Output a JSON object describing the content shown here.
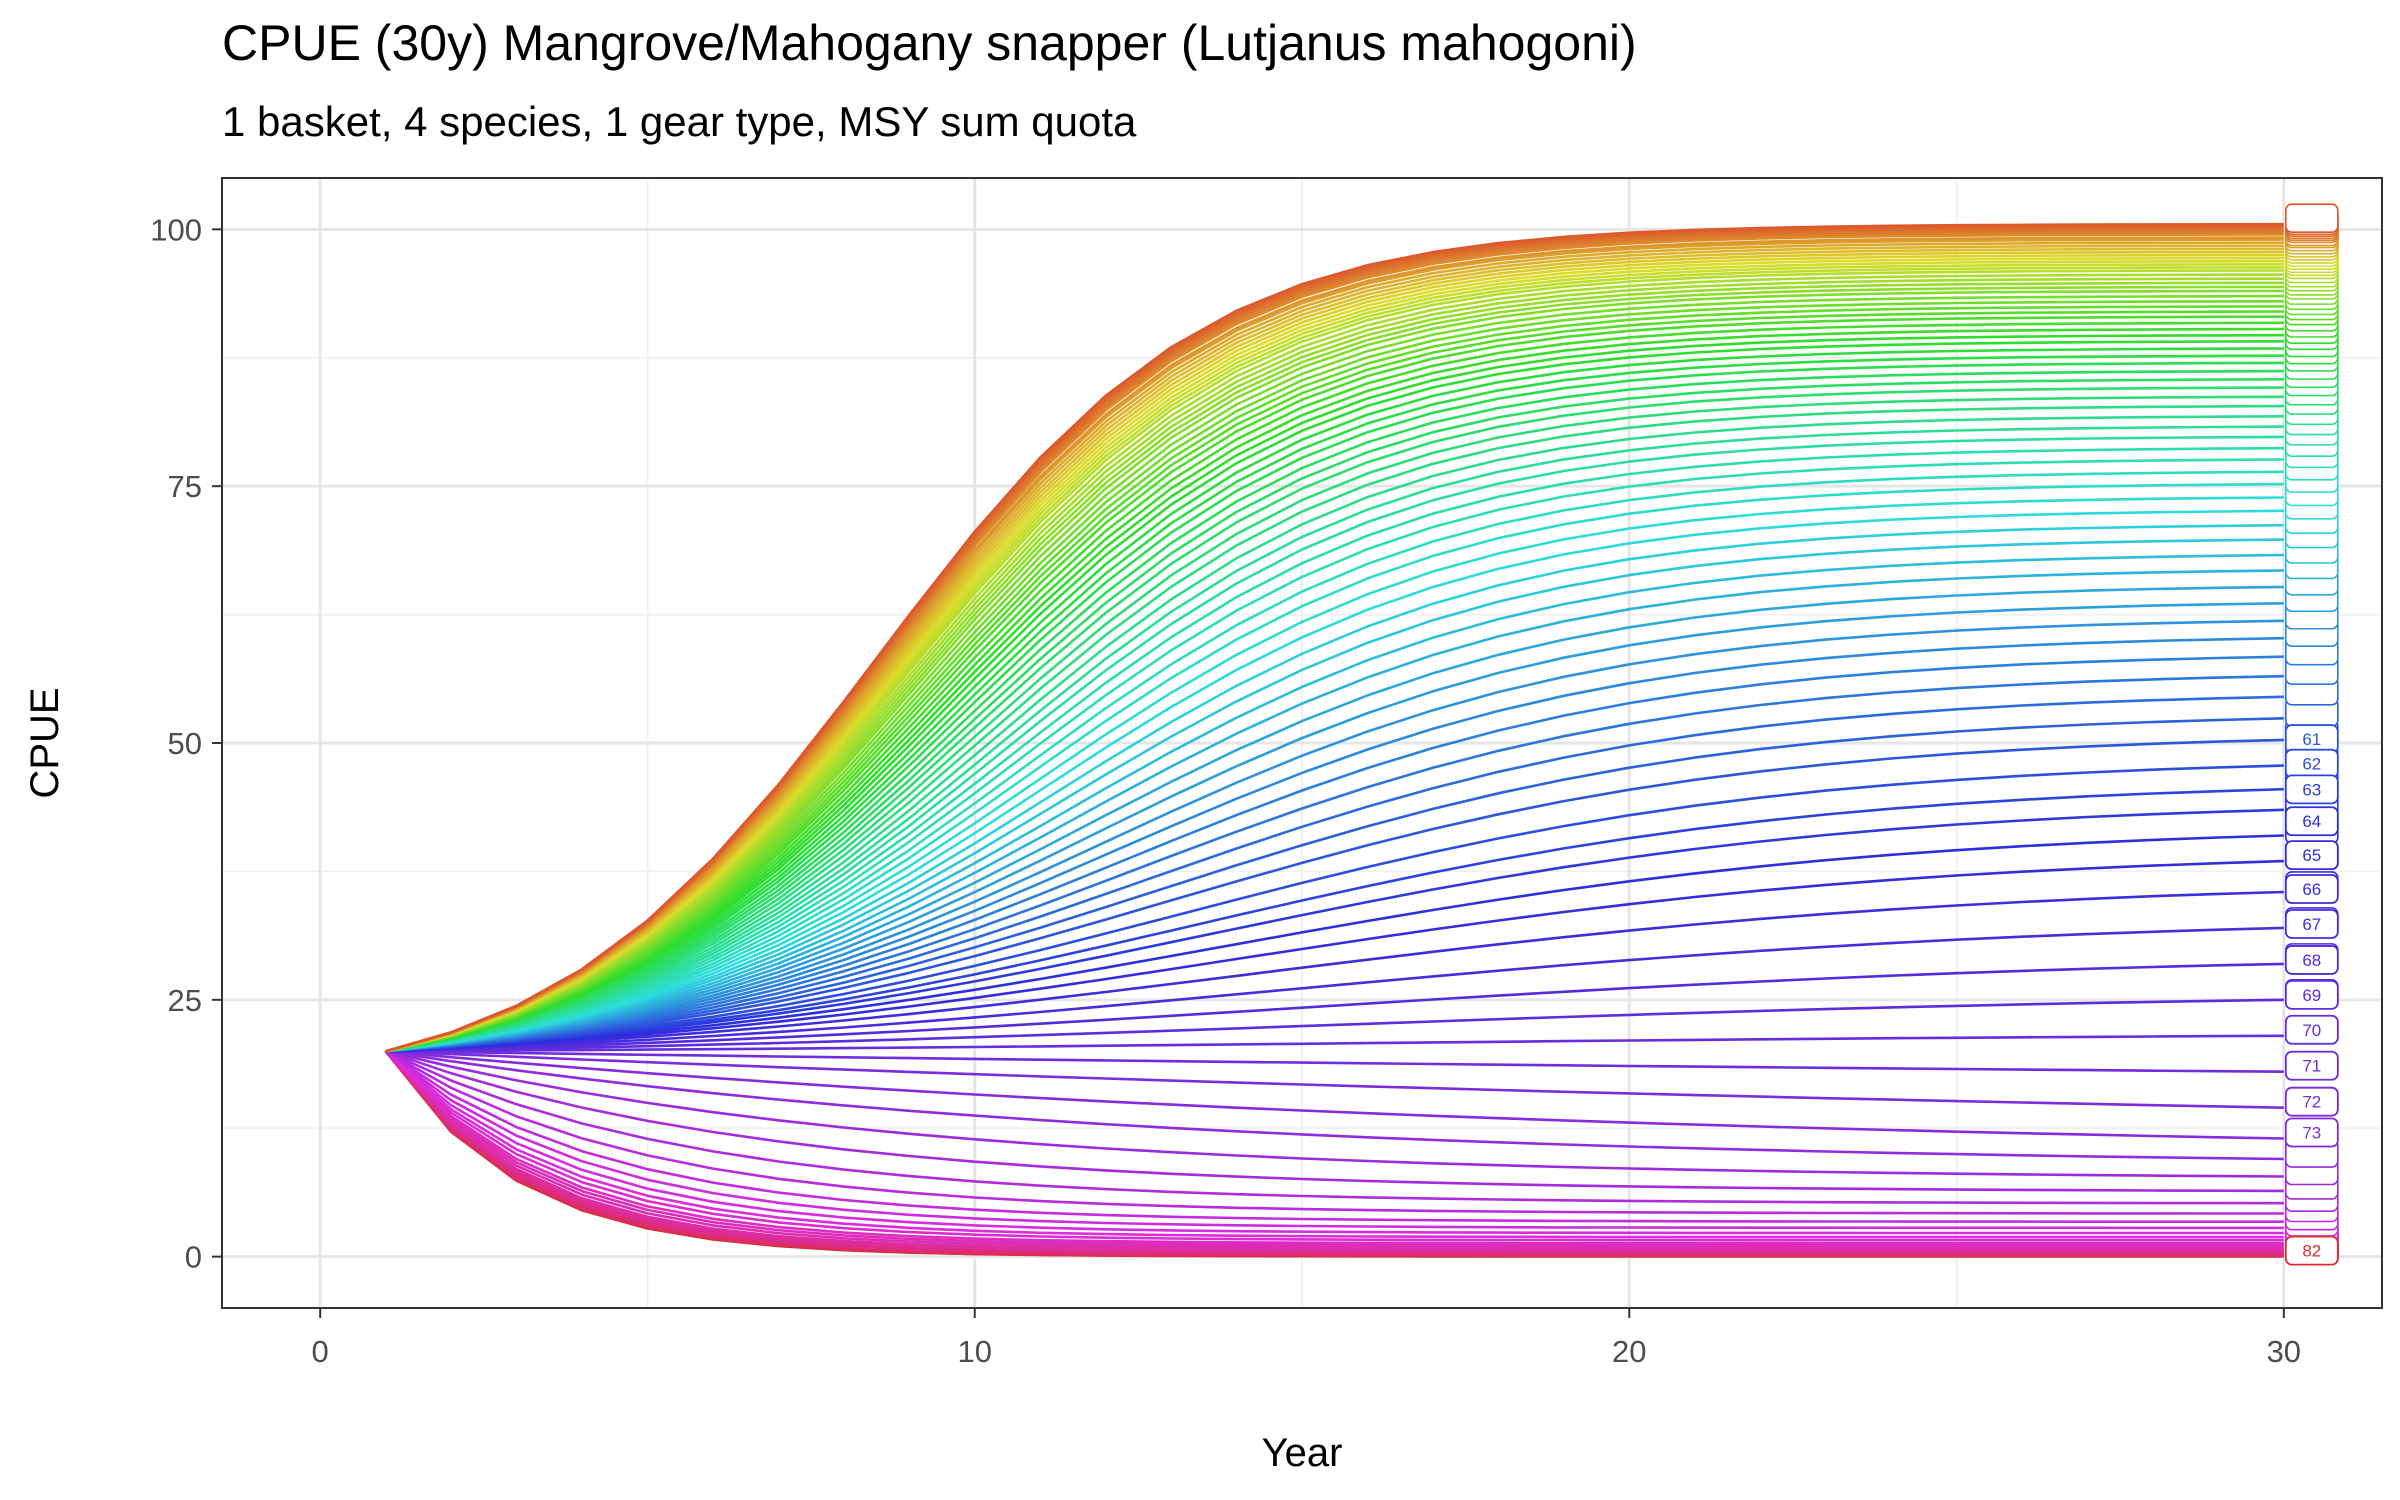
{
  "chart_data": {
    "type": "line",
    "title": "CPUE (30y) Mangrove/Mahogany snapper (Lutjanus mahogoni)",
    "subtitle": "1 basket, 4 species, 1 gear type, MSY sum quota",
    "xlabel": "Year",
    "ylabel": "CPUE",
    "xlim": [
      -1.5,
      31.5
    ],
    "ylim": [
      -5,
      105
    ],
    "x_ticks": [
      0,
      10,
      20,
      30
    ],
    "y_ticks": [
      0,
      25,
      50,
      75,
      100
    ],
    "x_tick_labels": [
      "0",
      "10",
      "20",
      "30"
    ],
    "y_tick_labels": [
      "0",
      "25",
      "50",
      "75",
      "100"
    ],
    "grid": true,
    "legend": "none",
    "x": [
      1,
      2,
      3,
      4,
      5,
      6,
      7,
      8,
      9,
      10,
      11,
      12,
      13,
      14,
      15,
      16,
      17,
      18,
      19,
      20,
      21,
      22,
      23,
      24,
      25,
      26,
      27,
      28,
      29,
      30
    ],
    "series_count": 100,
    "start_value": 20,
    "series_end_values_year30": [
      100.5,
      100.3,
      100.1,
      99.9,
      99.7,
      99.5,
      99.2,
      99.0,
      98.7,
      98.4,
      98.1,
      97.8,
      97.5,
      97.2,
      96.9,
      96.6,
      96.3,
      96.0,
      95.6,
      95.2,
      94.8,
      94.4,
      94.0,
      93.5,
      93.0,
      92.5,
      92.0,
      91.5,
      90.9,
      90.3,
      89.7,
      89.1,
      88.4,
      87.7,
      87.0,
      86.2,
      85.4,
      84.6,
      83.7,
      82.8,
      81.8,
      80.8,
      79.8,
      78.7,
      77.6,
      76.4,
      75.2,
      73.9,
      72.6,
      71.2,
      69.8,
      68.3,
      66.8,
      65.2,
      63.6,
      61.9,
      60.2,
      58.4,
      56.5,
      54.5,
      52.4,
      50.3,
      47.8,
      45.5,
      43.5,
      41.0,
      38.5,
      35.5,
      32.0,
      28.5,
      25.0,
      21.5,
      18.0,
      14.5,
      11.5,
      9.5,
      7.8,
      6.4,
      5.2,
      4.2,
      3.4,
      2.8,
      2.3,
      1.9,
      1.6,
      1.3,
      1.1,
      0.9,
      0.7,
      0.6,
      0.5,
      0.4,
      0.3,
      0.25,
      0.2,
      0.15,
      0.1,
      0.07,
      0.04,
      0.02
    ],
    "end_labels": [
      "61",
      "62",
      "63",
      "64",
      "65",
      "66",
      "67",
      "68",
      "69",
      "70",
      "71",
      "72",
      "73",
      "82"
    ],
    "end_label_values": [
      49.8,
      47.4,
      44.9,
      41.8,
      38.5,
      35.2,
      31.8,
      28.3,
      24.9,
      21.5,
      18.0,
      14.5,
      11.5,
      0
    ]
  }
}
